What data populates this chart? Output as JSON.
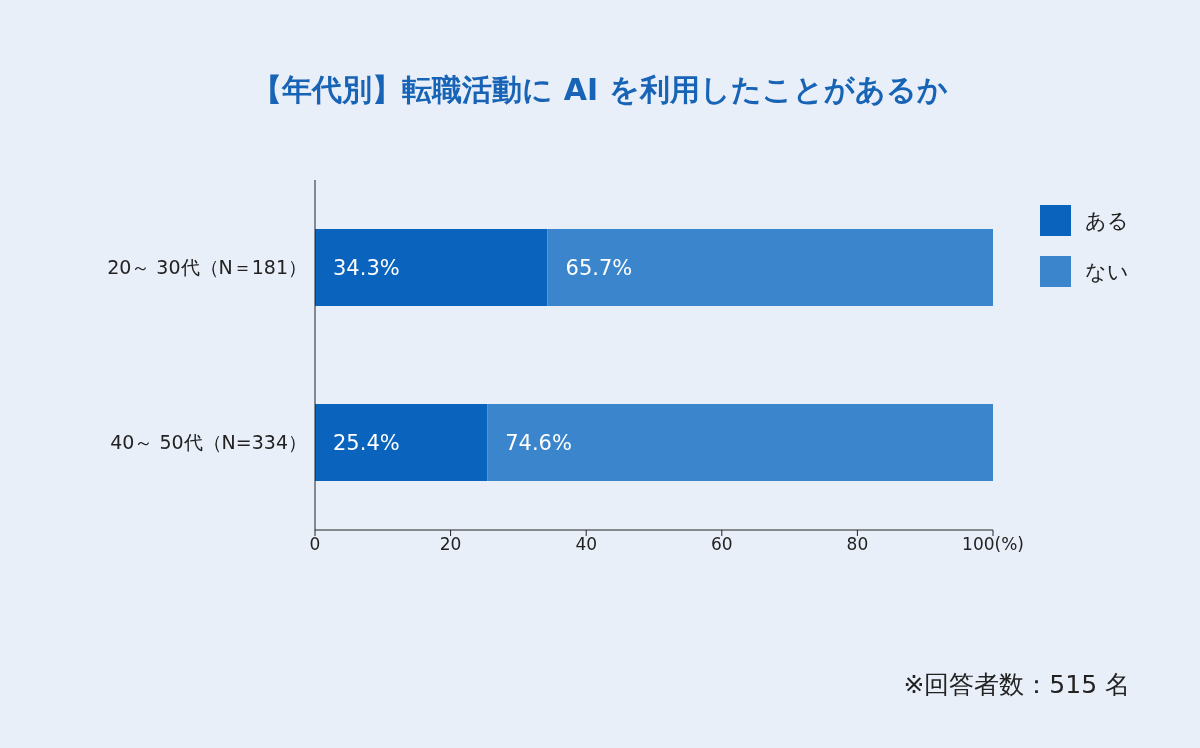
{
  "chart_data": {
    "type": "bar",
    "orientation": "horizontal",
    "stacked": true,
    "title": "【年代別】転職活動に AI を利用したことがあるか",
    "categories": [
      "20～ 30代（N＝181）",
      "40～ 50代（N=334）"
    ],
    "series": [
      {
        "name": "ある",
        "color": "#0a63bd",
        "values": [
          34.3,
          25.4
        ],
        "value_labels": [
          "34.3%",
          "25.4%"
        ]
      },
      {
        "name": "ない",
        "color": "#3a85cb",
        "values": [
          65.7,
          74.6
        ],
        "value_labels": [
          "65.7%",
          "74.6%"
        ]
      }
    ],
    "xlim": [
      0,
      100
    ],
    "xticks": [
      0,
      20,
      40,
      60,
      80,
      {
        "value": 100,
        "label": "100(%)"
      }
    ],
    "grid": false,
    "legend": "right",
    "annotations": [
      "※回答者数：515 名"
    ]
  }
}
